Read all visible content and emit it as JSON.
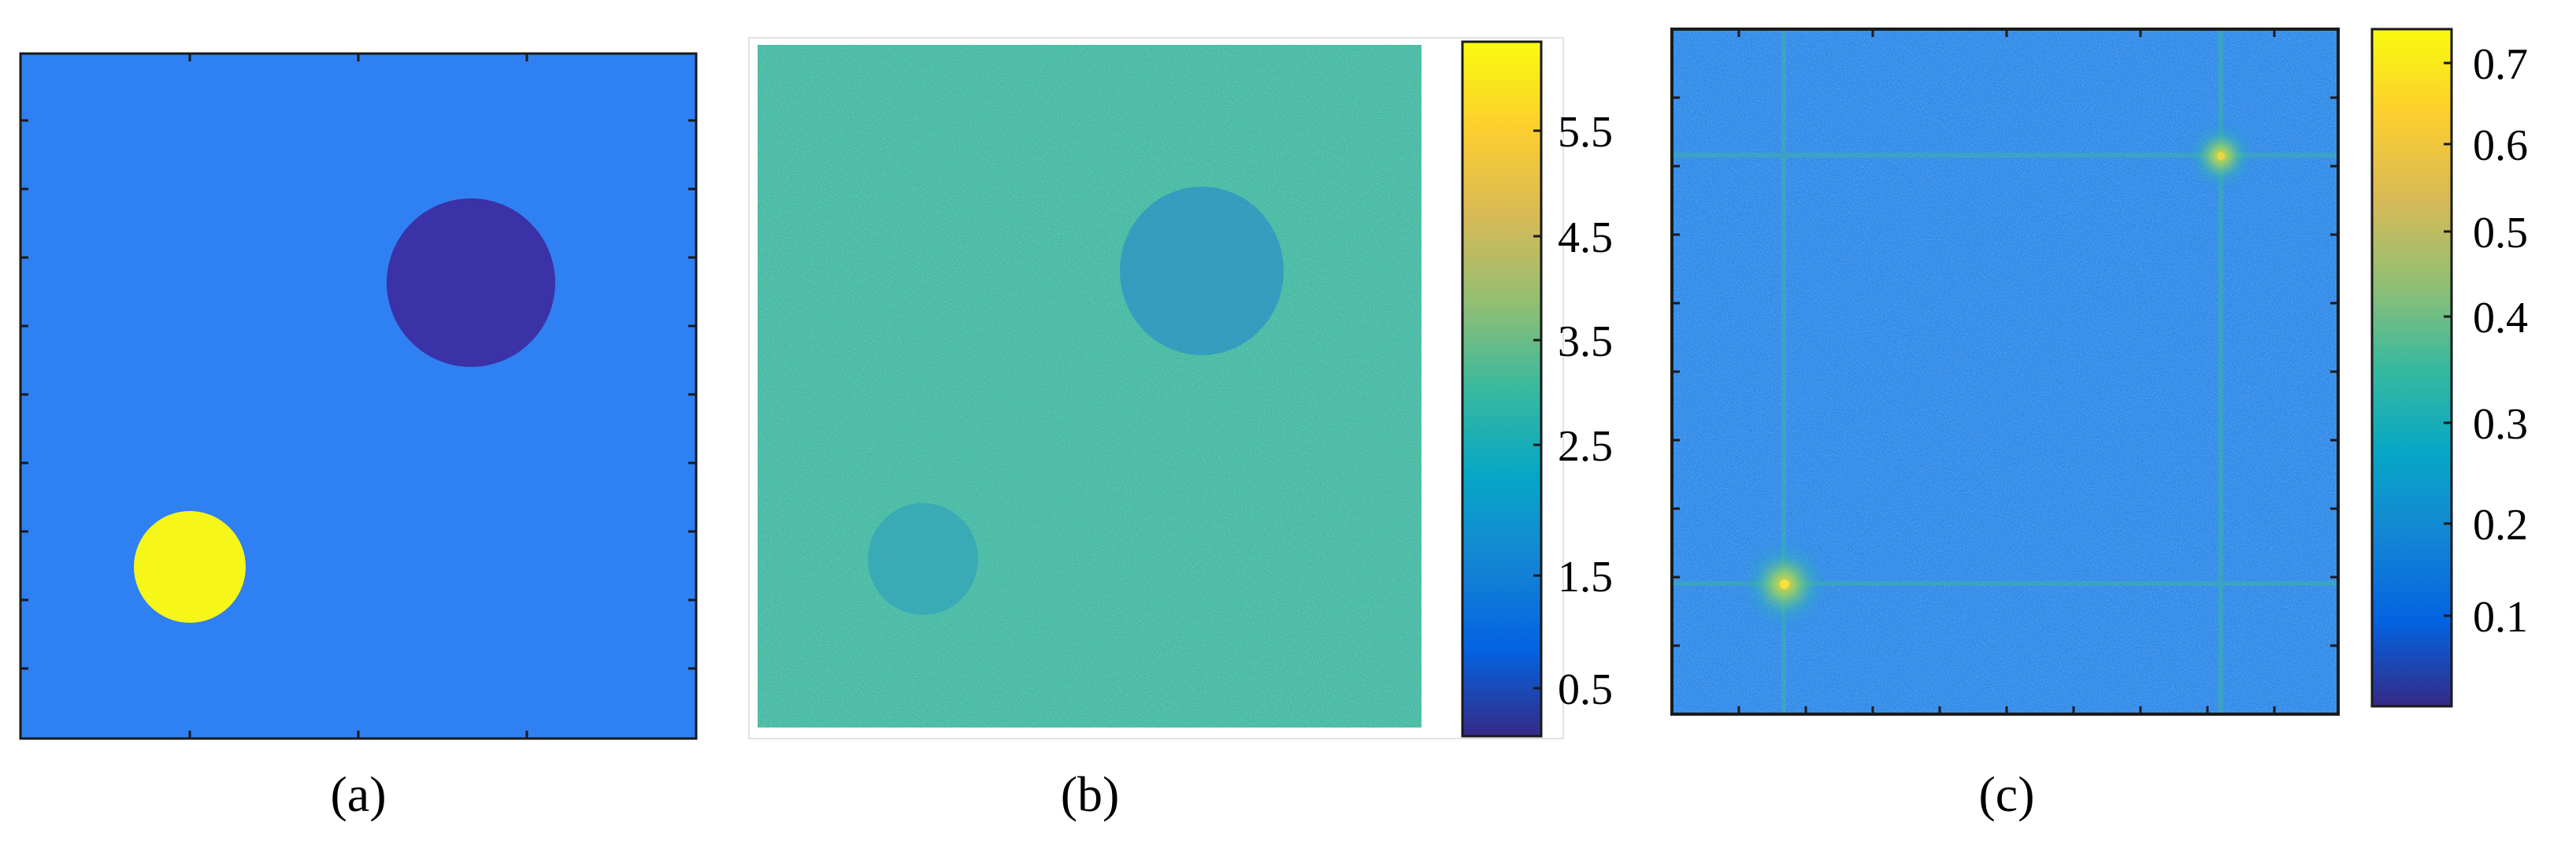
{
  "panels": [
    {
      "caption": "(a)"
    },
    {
      "caption": "(b)",
      "colorbar": {
        "ticks": [
          "5.5",
          "4.5",
          "3.5",
          "2.5",
          "1.5",
          "0.5"
        ]
      }
    },
    {
      "caption": "(c)",
      "colorbar": {
        "ticks": [
          "0.7",
          "0.6",
          "0.5",
          "0.4",
          "0.3",
          "0.2",
          "0.1"
        ]
      }
    }
  ],
  "colors": {
    "background_field": "#2f80f2",
    "dark_disk": "#3a32a6",
    "bright_disk": "#f6f718",
    "noise_base": "#33ae9a",
    "spectrum_base": "#2d88e6",
    "axis": "#1a1a1a"
  },
  "colormap_parula": [
    "#352a87",
    "#0363e1",
    "#1485d4",
    "#06a7c6",
    "#38b99e",
    "#92bf73",
    "#d9ba56",
    "#fcce2e",
    "#f9fb0e"
  ]
}
